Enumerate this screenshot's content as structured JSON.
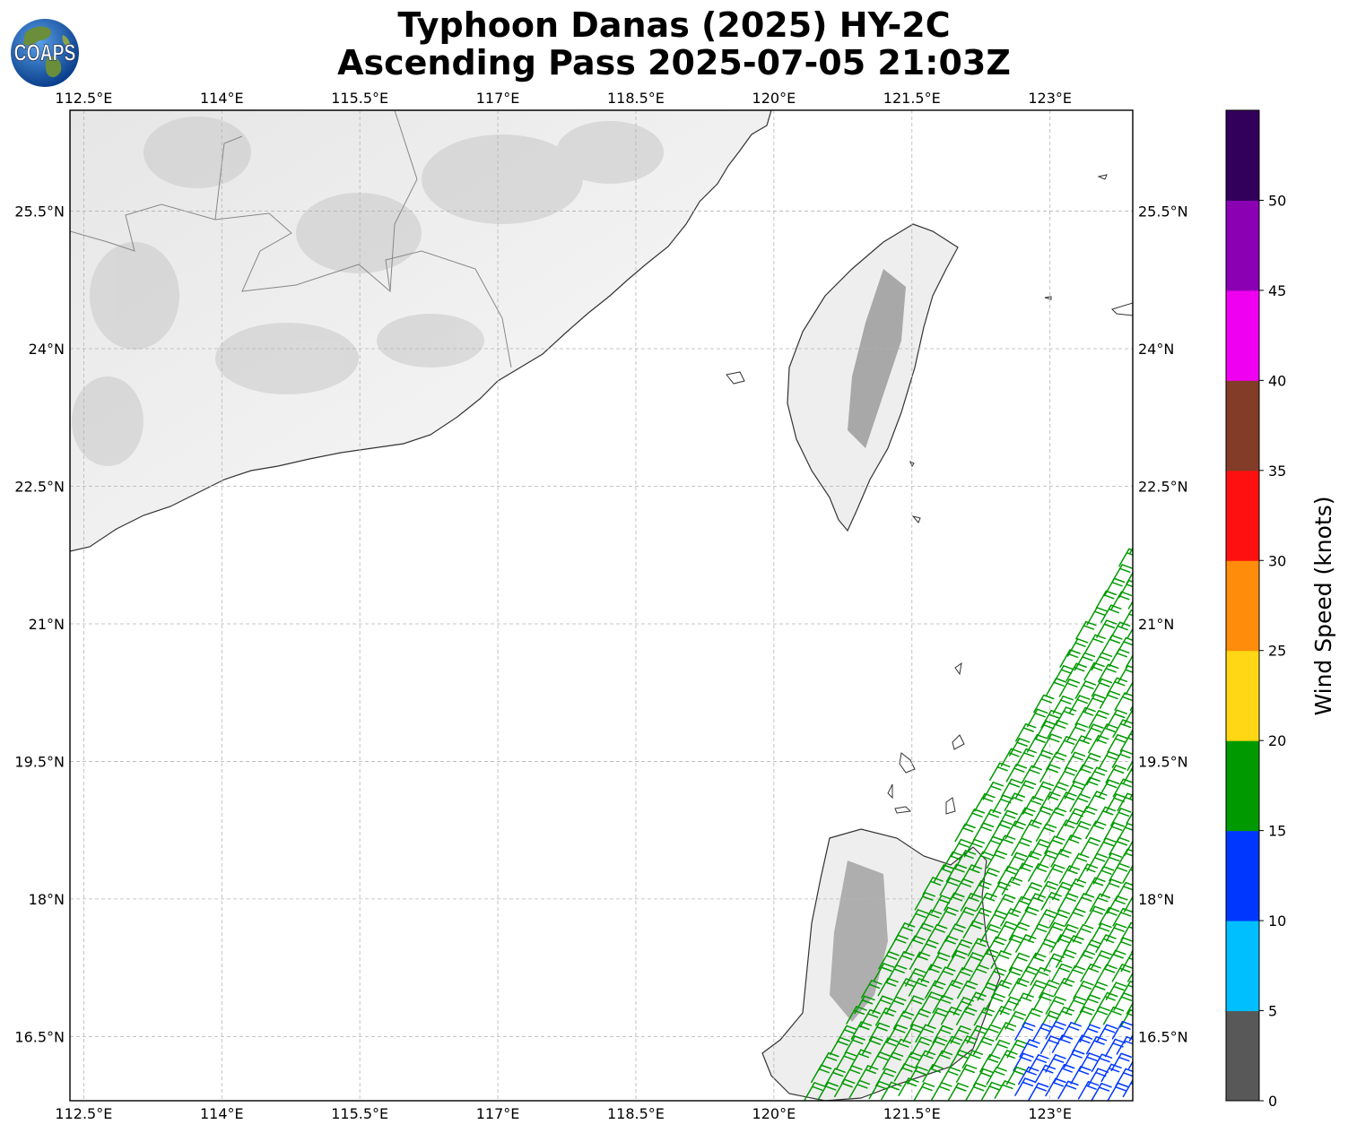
{
  "title": {
    "line1": "Typhoon Danas (2025) HY-2C",
    "line2": "Ascending Pass 2025-07-05 21:03Z"
  },
  "logo": {
    "text": "COAPS",
    "icon": "globe-icon"
  },
  "map": {
    "lon_range": [
      112.35,
      123.9
    ],
    "lat_range": [
      15.8,
      26.6
    ],
    "lon_ticks": [
      112.5,
      114,
      115.5,
      117,
      118.5,
      120,
      121.5,
      123
    ],
    "lon_labels": [
      "112.5°E",
      "114°E",
      "115.5°E",
      "117°E",
      "118.5°E",
      "120°E",
      "121.5°E",
      "123°E"
    ],
    "lat_ticks": [
      25.5,
      24,
      22.5,
      21,
      19.5,
      18,
      16.5
    ],
    "lat_labels": [
      "25.5°N",
      "24°N",
      "22.5°N",
      "21°N",
      "19.5°N",
      "18°N",
      "16.5°N"
    ],
    "gridlines": true,
    "land_color": "#f0f0f0",
    "coast_color": "#333333"
  },
  "colorbar": {
    "title": "Wind Speed (knots)",
    "ticks": [
      "0",
      "5",
      "10",
      "15",
      "20",
      "25",
      "30",
      "35",
      "40",
      "45",
      "50"
    ],
    "colors": [
      "#585858",
      "#00bfff",
      "#0037ff",
      "#009a00",
      "#ffd714",
      "#ff8c0a",
      "#ff1010",
      "#823c28",
      "#f000f0",
      "#8c00b4",
      "#32005a"
    ]
  }
}
